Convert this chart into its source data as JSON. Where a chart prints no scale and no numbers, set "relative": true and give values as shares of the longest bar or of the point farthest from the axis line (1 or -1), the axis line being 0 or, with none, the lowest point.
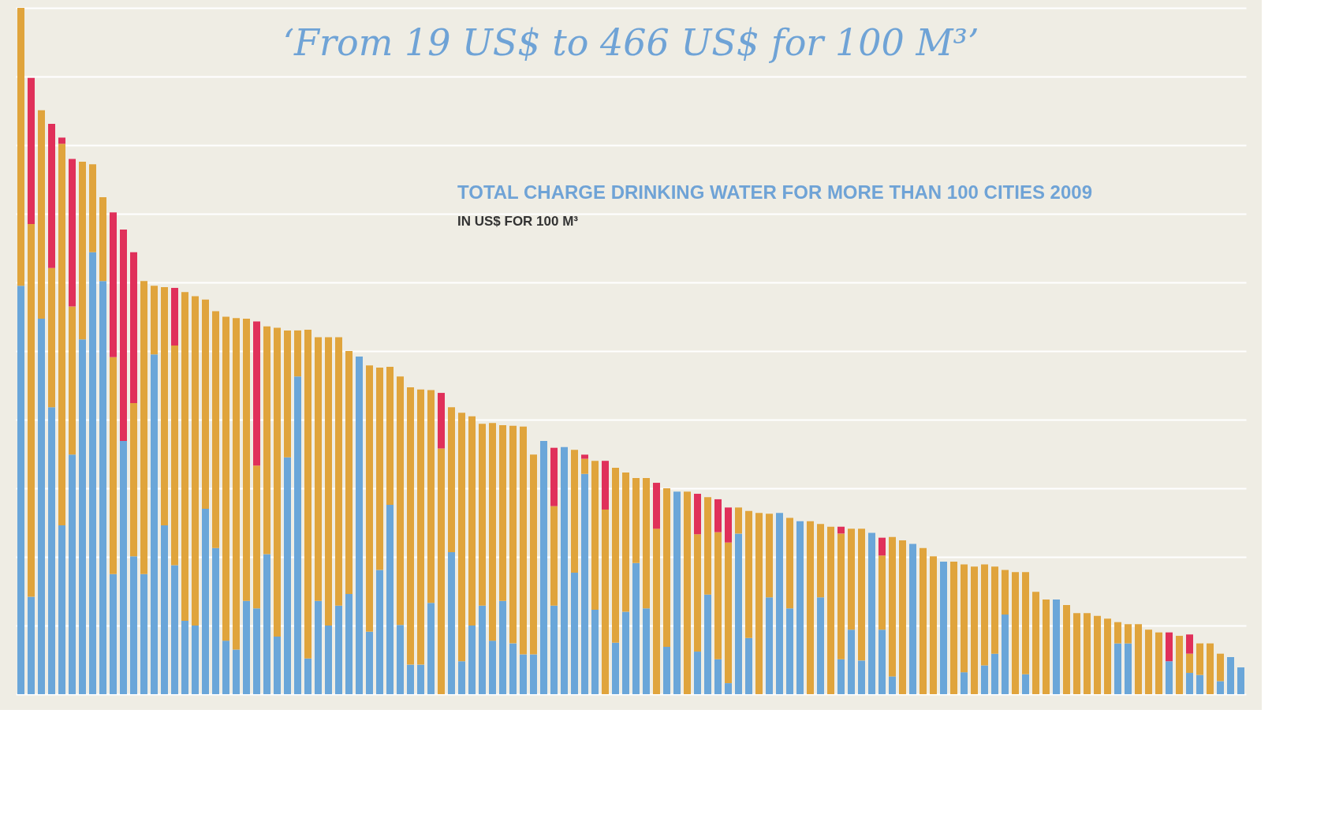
{
  "chart_data": {
    "type": "bar",
    "stacked": true,
    "relative": true,
    "grid": "y",
    "tick_labels": false,
    "title": "‘From 19 US$ to 466 US$ for 100 M³’",
    "annotations": [
      "TOTAL CHARGE DRINKING WATER FOR MORE THAN 100 CITIES 2009",
      "IN US$ FOR 100 M³"
    ],
    "categories": [
      null,
      null,
      null,
      null,
      null,
      null,
      null,
      null,
      null,
      null,
      null,
      null,
      null,
      null,
      null,
      null,
      null,
      null,
      null,
      null,
      null,
      null,
      null,
      null,
      null,
      null,
      null,
      null,
      null,
      null,
      null,
      null,
      null,
      null,
      null,
      null,
      null,
      null,
      null,
      null,
      null,
      null,
      null,
      null,
      null,
      null,
      null,
      null,
      null,
      null,
      null,
      null,
      null,
      null,
      null,
      null,
      null,
      null,
      null,
      null,
      null,
      null,
      null,
      null,
      null,
      null,
      null,
      null,
      null,
      null,
      null,
      null,
      null,
      null,
      null,
      null,
      null,
      null,
      null,
      null,
      null,
      null,
      null,
      null,
      null,
      null,
      null,
      null,
      null,
      null,
      null,
      null,
      null,
      null,
      null,
      null,
      null,
      null,
      null,
      null,
      null,
      null,
      null,
      null,
      null,
      null,
      null,
      null,
      null,
      null,
      null,
      null,
      null,
      null,
      null,
      null,
      null,
      null,
      null,
      null
    ],
    "series": [
      {
        "color": "#6aa6d9",
        "values": [
          0.595,
          0.142,
          0.547,
          0.418,
          0.246,
          0.349,
          0.517,
          0.644,
          0.602,
          0.175,
          0.369,
          0.201,
          0.175,
          0.495,
          0.246,
          0.188,
          0.107,
          0.1,
          0.27,
          0.213,
          0.078,
          0.065,
          0.136,
          0.125,
          0.204,
          0.084,
          0.345,
          0.463,
          0.052,
          0.136,
          0.1,
          0.129,
          0.146,
          0.492,
          0.091,
          0.181,
          0.276,
          0.101,
          0.043,
          0.043,
          0.133,
          0,
          0.207,
          0.048,
          0.1,
          0.129,
          0.078,
          0.136,
          0.074,
          0.058,
          0.058,
          0.369,
          0.129,
          0.36,
          0.177,
          0.321,
          0.123,
          0,
          0.075,
          0.12,
          0.191,
          0.125,
          0,
          0.069,
          0.295,
          0,
          0.062,
          0.145,
          0.051,
          0.016,
          0.234,
          0.082,
          0,
          0.141,
          0.264,
          0.125,
          0.252,
          0,
          0.141,
          0,
          0.051,
          0.094,
          0.049,
          0.235,
          0.094,
          0.026,
          0,
          0.219,
          0,
          0,
          0.193,
          0,
          0.032,
          0,
          0.042,
          0.059,
          0.116,
          0,
          0.029,
          0,
          0,
          0.138,
          0,
          0,
          0,
          0,
          0,
          0.074,
          0.074,
          0,
          0,
          0,
          0.048,
          0,
          0.031,
          0.028,
          0,
          0.019,
          0.054,
          0.039
        ]
      },
      {
        "color": "#e0a43c",
        "values": [
          0.405,
          0.543,
          0.304,
          0.203,
          0.556,
          0.216,
          0.259,
          0.128,
          0.122,
          0.316,
          0,
          0.223,
          0.427,
          0.1,
          0.347,
          0.32,
          0.479,
          0.48,
          0.305,
          0.345,
          0.472,
          0.483,
          0.411,
          0.208,
          0.332,
          0.45,
          0.185,
          0.067,
          0.479,
          0.384,
          0.42,
          0.391,
          0.354,
          0,
          0.388,
          0.295,
          0.201,
          0.362,
          0.404,
          0.401,
          0.31,
          0.358,
          0.211,
          0.362,
          0.305,
          0.265,
          0.317,
          0.256,
          0.317,
          0.332,
          0.291,
          0,
          0.145,
          0,
          0.179,
          0.022,
          0.217,
          0.269,
          0.255,
          0.203,
          0.124,
          0.19,
          0.241,
          0.231,
          0,
          0.295,
          0.171,
          0.142,
          0.185,
          0.205,
          0.038,
          0.185,
          0.264,
          0.122,
          0,
          0.132,
          0,
          0.252,
          0.107,
          0.244,
          0.183,
          0.147,
          0.192,
          0,
          0.108,
          0.203,
          0.224,
          0,
          0.213,
          0.201,
          0,
          0.193,
          0.157,
          0.186,
          0.147,
          0.127,
          0.065,
          0.178,
          0.149,
          0.149,
          0.138,
          0,
          0.13,
          0.118,
          0.118,
          0.114,
          0.11,
          0.031,
          0.028,
          0.102,
          0.094,
          0.09,
          0,
          0.085,
          0.028,
          0.046,
          0.074,
          0.04,
          0,
          0
        ]
      },
      {
        "color": "#e0305a",
        "values": [
          0,
          0.213,
          0,
          0.21,
          0.009,
          0.215,
          0,
          0,
          0,
          0.211,
          0.308,
          0.22,
          0,
          0,
          0,
          0.084,
          0,
          0,
          0,
          0,
          0,
          0,
          0,
          0.21,
          0,
          0,
          0,
          0,
          0,
          0,
          0,
          0,
          0,
          0,
          0,
          0,
          0,
          0,
          0,
          0,
          0,
          0.081,
          0,
          0,
          0,
          0,
          0,
          0,
          0,
          0,
          0,
          0,
          0.085,
          0,
          0,
          0.006,
          0,
          0.071,
          0,
          0,
          0,
          0,
          0.067,
          0,
          0,
          0,
          0.059,
          0,
          0.048,
          0.051,
          0,
          0,
          0,
          0,
          0,
          0,
          0,
          0,
          0,
          0,
          0.01,
          0,
          0,
          0,
          0.026,
          0,
          0,
          0,
          0,
          0,
          0,
          0,
          0,
          0,
          0,
          0,
          0,
          0,
          0,
          0,
          0,
          0,
          0,
          0,
          0,
          0,
          0,
          0,
          0,
          0,
          0,
          0,
          0.042,
          0,
          0.028,
          0,
          0,
          0,
          0,
          0
        ]
      }
    ]
  }
}
